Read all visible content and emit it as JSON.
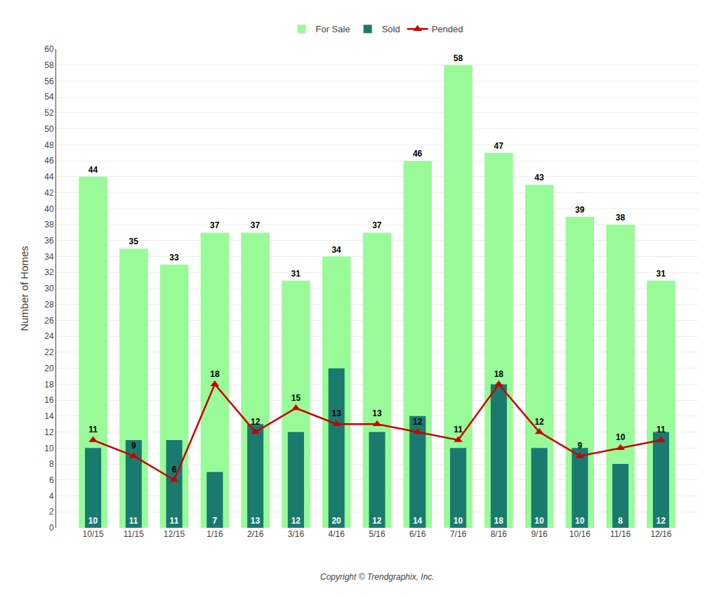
{
  "chart_data": {
    "type": "bar",
    "ylabel": "Number of Homes",
    "categories": [
      "10/15",
      "11/15",
      "12/15",
      "1/16",
      "2/16",
      "3/16",
      "4/16",
      "5/16",
      "6/16",
      "7/16",
      "8/16",
      "9/16",
      "10/16",
      "11/16",
      "12/16"
    ],
    "series": [
      {
        "name": "For Sale",
        "type": "bar",
        "color": "#98FB98",
        "values": [
          44,
          35,
          33,
          37,
          37,
          31,
          34,
          37,
          46,
          58,
          47,
          43,
          39,
          38,
          31
        ]
      },
      {
        "name": "Sold",
        "type": "bar",
        "color": "#1A7A6E",
        "values": [
          10,
          11,
          11,
          7,
          13,
          12,
          20,
          12,
          14,
          10,
          18,
          10,
          10,
          8,
          12
        ]
      },
      {
        "name": "Pended",
        "type": "line",
        "color": "#CC0000",
        "marker": "triangle-up",
        "line_style": "solid",
        "values": [
          11,
          9,
          6,
          18,
          12,
          15,
          13,
          13,
          12,
          11,
          18,
          12,
          9,
          10,
          11
        ]
      }
    ],
    "ylim": [
      0,
      60
    ],
    "yticks": [
      0,
      2,
      4,
      6,
      8,
      10,
      12,
      14,
      16,
      18,
      20,
      22,
      24,
      26,
      28,
      30,
      32,
      34,
      36,
      38,
      40,
      42,
      44,
      46,
      48,
      50,
      52,
      54,
      56,
      58,
      60
    ],
    "grid": true,
    "legend": "top",
    "data_labels": true,
    "annotations": [
      "Copyright © Trendgraphix, Inc."
    ]
  }
}
